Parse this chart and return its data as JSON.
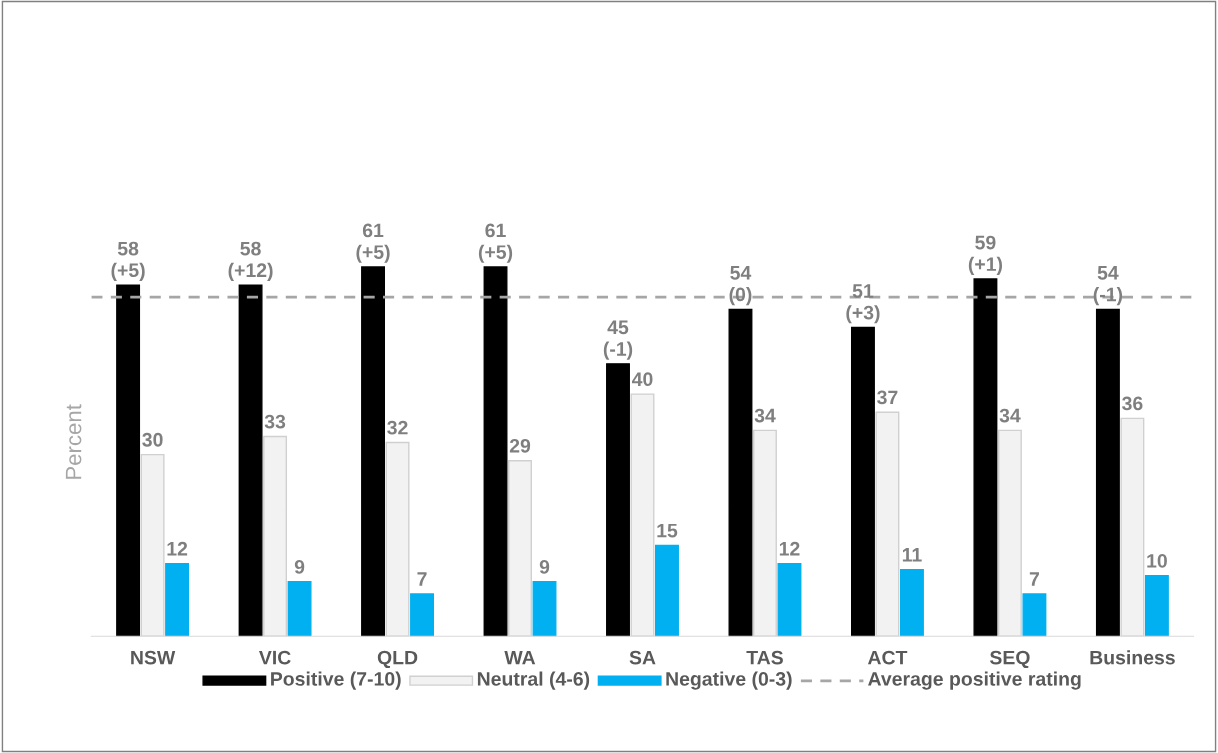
{
  "chart_data": {
    "type": "bar",
    "ylabel": "Percent",
    "categories": [
      "NSW",
      "VIC",
      "QLD",
      "WA",
      "SA",
      "TAS",
      "ACT",
      "SEQ",
      "Business"
    ],
    "series": [
      {
        "name": "Positive (7-10)",
        "color": "#000000",
        "values": [
          58,
          58,
          61,
          61,
          45,
          54,
          51,
          59,
          54
        ],
        "value_labels": [
          "58\n(+5)",
          "58\n(+12)",
          "61\n(+5)",
          "61\n(+5)",
          "45\n(-1)",
          "54\n(0)",
          "51\n(+3)",
          "59\n(+1)",
          "54\n(-1)"
        ]
      },
      {
        "name": "Neutral (4-6)",
        "color": "#f2f2f2",
        "values": [
          30,
          33,
          32,
          29,
          40,
          34,
          37,
          34,
          36
        ],
        "value_labels": [
          "30",
          "33",
          "32",
          "29",
          "40",
          "34",
          "37",
          "34",
          "36"
        ]
      },
      {
        "name": "Negative (0-3)",
        "color": "#00b0f0",
        "values": [
          12,
          9,
          7,
          9,
          15,
          12,
          11,
          7,
          10
        ],
        "value_labels": [
          "12",
          "9",
          "7",
          "9",
          "15",
          "12",
          "11",
          "7",
          "10"
        ]
      }
    ],
    "ref_lines": [
      {
        "axis": "y",
        "value": 56,
        "label": "Average positive rating",
        "color": "#a6a6a6",
        "line_style": "dashed"
      }
    ],
    "tick_labels": "x",
    "grid": false,
    "legend": "bottom"
  }
}
